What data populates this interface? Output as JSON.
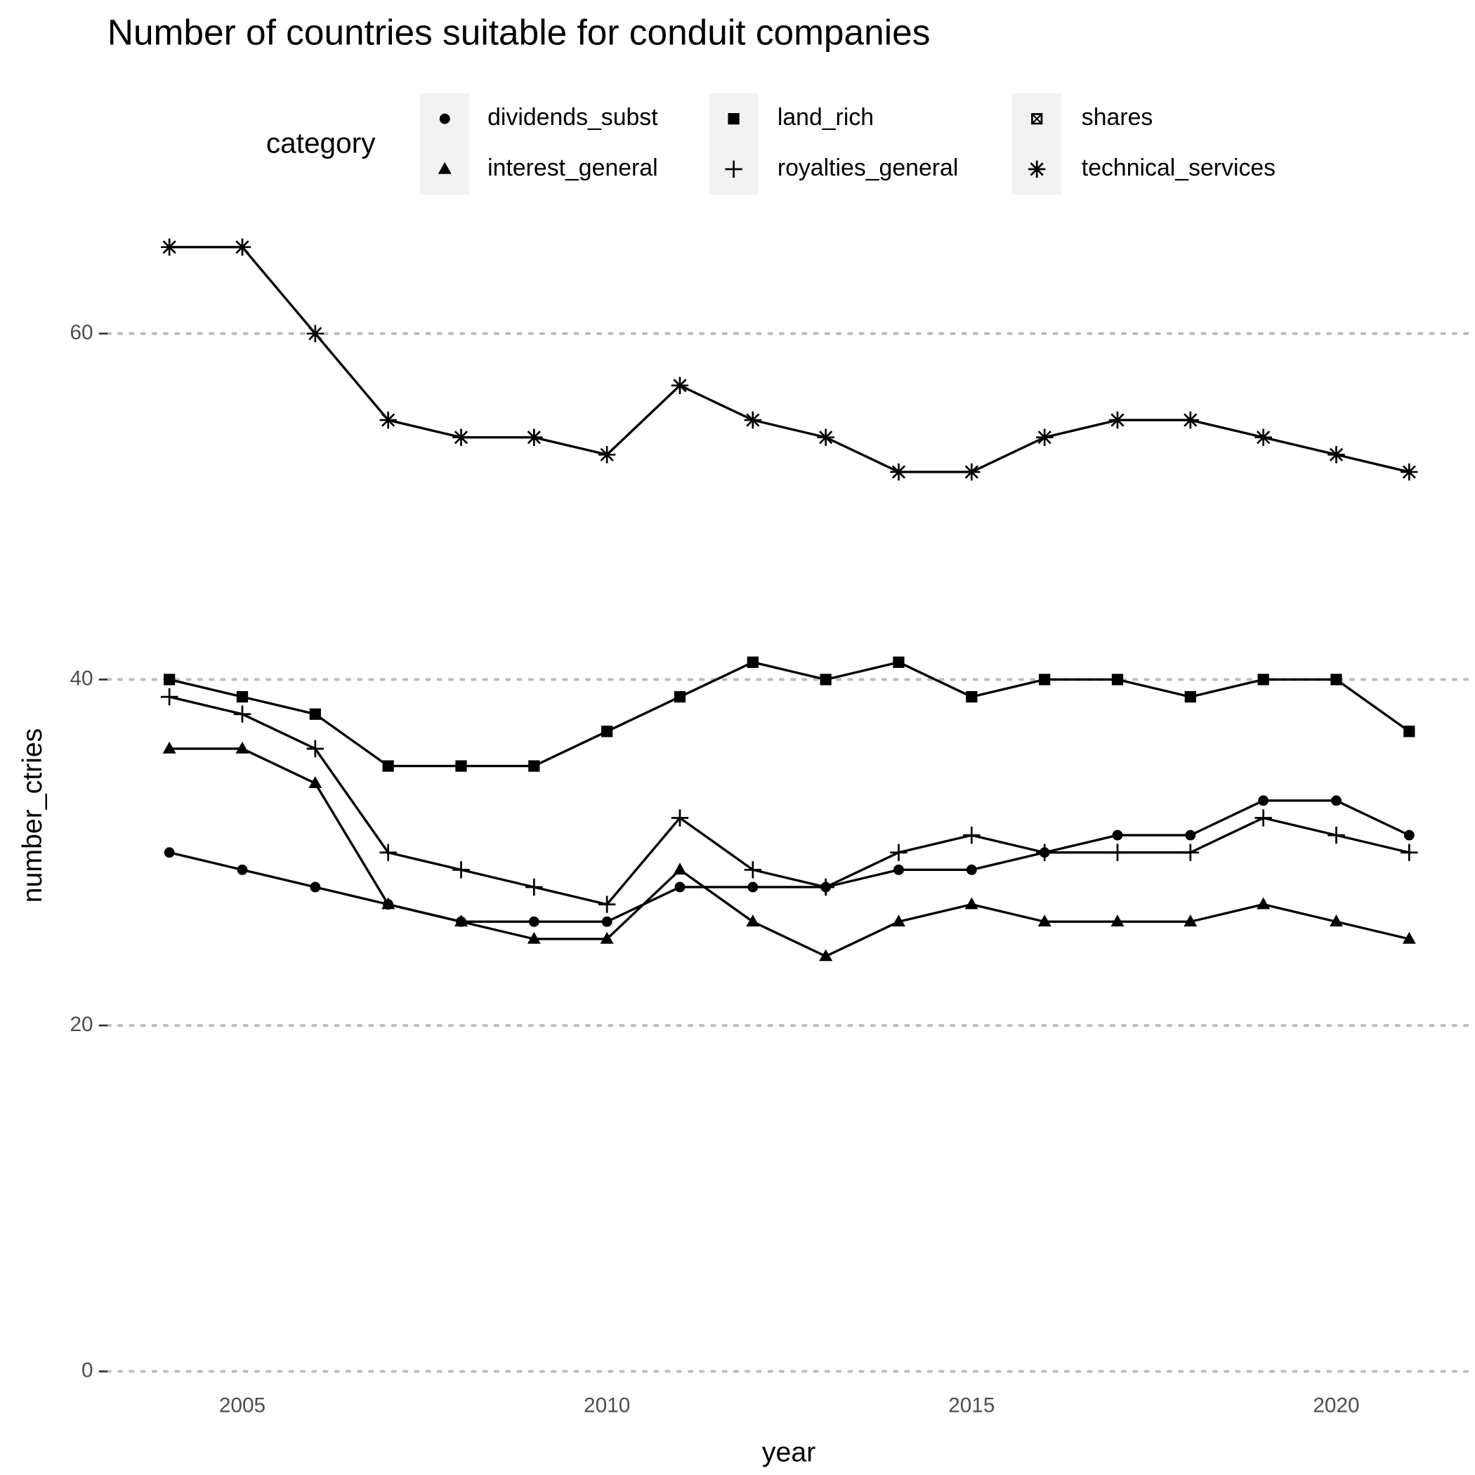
{
  "chart_data": {
    "type": "line",
    "title": "Number of countries suitable for conduit companies",
    "x_label": "year",
    "y_label": "number_ctries",
    "legend_title": "category",
    "legend": "top",
    "x": [
      2004,
      2005,
      2006,
      2007,
      2008,
      2009,
      2010,
      2011,
      2012,
      2013,
      2014,
      2015,
      2016,
      2017,
      2018,
      2019,
      2020,
      2021
    ],
    "series": [
      {
        "name": "dividends_subst",
        "color": "#000000",
        "shape": "circle",
        "values": [
          30,
          29,
          28,
          27,
          26,
          26,
          26,
          28,
          28,
          28,
          29,
          29,
          30,
          31,
          31,
          33,
          33,
          31
        ]
      },
      {
        "name": "interest_general",
        "color": "#000000",
        "shape": "triangle",
        "values": [
          36,
          36,
          34,
          27,
          26,
          25,
          25,
          29,
          26,
          24,
          26,
          27,
          26,
          26,
          26,
          27,
          26,
          25
        ]
      },
      {
        "name": "land_rich",
        "color": "#000000",
        "shape": "square",
        "values": [
          40,
          39,
          38,
          35,
          35,
          35,
          37,
          39,
          41,
          40,
          41,
          39,
          40,
          40,
          39,
          40,
          40,
          37
        ]
      },
      {
        "name": "royalties_general",
        "color": "#000000",
        "shape": "plus",
        "values": [
          39,
          38,
          36,
          30,
          29,
          28,
          27,
          32,
          29,
          28,
          30,
          31,
          30,
          30,
          30,
          32,
          31,
          30
        ]
      },
      {
        "name": "shares",
        "color": "#000000",
        "shape": "square-cross",
        "values": [
          null,
          null,
          null,
          null,
          null,
          null,
          null,
          null,
          null,
          null,
          null,
          null,
          null,
          null,
          null,
          null,
          null,
          null
        ]
      },
      {
        "name": "technical_services",
        "color": "#000000",
        "shape": "asterisk",
        "values": [
          65,
          65,
          60,
          55,
          54,
          54,
          53,
          57,
          55,
          54,
          52,
          52,
          54,
          55,
          55,
          54,
          53,
          52
        ]
      }
    ],
    "xlim": [
      2003.15,
      2021.85
    ],
    "xticks": [
      2005,
      2010,
      2015,
      2020
    ],
    "ylim": [
      0,
      66
    ],
    "yticks": [
      0,
      20,
      40,
      60
    ],
    "grid": true
  }
}
